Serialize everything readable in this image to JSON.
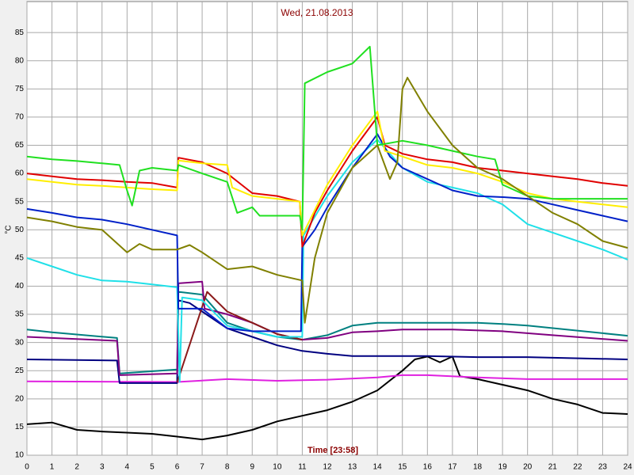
{
  "chart_data": {
    "type": "line",
    "title": "Wed, 21.08.2013",
    "x_label": "Time [23:58]",
    "y_label": "°C",
    "xlim": [
      0,
      24
    ],
    "ylim": [
      10,
      90.5
    ],
    "xticks": [
      0,
      1,
      2,
      3,
      4,
      5,
      6,
      7,
      8,
      9,
      10,
      11,
      12,
      13,
      14,
      15,
      16,
      17,
      18,
      19,
      20,
      21,
      22,
      23,
      24
    ],
    "yticks": [
      10,
      15,
      20,
      25,
      30,
      35,
      40,
      45,
      50,
      55,
      60,
      65,
      70,
      75,
      80,
      85
    ],
    "grid": true,
    "series": [
      {
        "color": "#000000",
        "x": [
          0,
          1,
          2,
          3,
          4,
          5,
          6,
          7,
          8,
          9,
          10,
          11,
          12,
          13,
          14,
          15,
          15.5,
          16,
          16.5,
          17,
          17.3,
          18,
          19,
          20,
          21,
          22,
          23,
          24
        ],
        "values": [
          15.5,
          15.8,
          14.5,
          14.2,
          14,
          13.8,
          13.3,
          12.8,
          13.5,
          14.5,
          16,
          17,
          18,
          19.5,
          21.5,
          25,
          27,
          27.5,
          26.5,
          27.5,
          24,
          23.5,
          22.5,
          21.5,
          20,
          19,
          17.5,
          17.3
        ]
      },
      {
        "color": "#e020e0",
        "x": [
          0,
          6,
          8,
          10,
          12,
          14,
          15,
          16,
          18,
          20,
          24
        ],
        "values": [
          23.1,
          23,
          23.5,
          23.2,
          23.4,
          23.8,
          24.2,
          24.2,
          23.8,
          23.5,
          23.5
        ]
      },
      {
        "color": "#000080",
        "x": [
          0,
          3.6,
          3.7,
          6,
          6.05,
          6.5,
          7,
          8,
          9,
          10,
          11,
          12,
          13,
          14,
          16,
          18,
          20,
          24
        ],
        "values": [
          27,
          26.8,
          22.8,
          22.8,
          37.5,
          37,
          35.5,
          32.5,
          31,
          29.5,
          28.5,
          28,
          27.6,
          27.6,
          27.6,
          27.4,
          27.4,
          27
        ]
      },
      {
        "color": "#008080",
        "x": [
          0,
          1,
          3.6,
          3.7,
          6,
          6.05,
          7,
          8,
          9,
          10,
          11,
          12,
          13,
          14,
          16,
          18,
          19,
          20,
          24
        ],
        "values": [
          32.3,
          31.8,
          30.8,
          24.5,
          25.2,
          39,
          38.5,
          33.5,
          32,
          31,
          30.5,
          31.3,
          33,
          33.5,
          33.5,
          33.5,
          33.3,
          33,
          31.2
        ]
      },
      {
        "color": "#800080",
        "x": [
          0,
          3.6,
          3.7,
          6,
          6.05,
          7,
          7.1,
          8,
          9,
          10,
          11,
          12,
          13,
          14,
          15,
          17,
          19,
          21,
          24
        ],
        "values": [
          31,
          30.3,
          24.2,
          24.5,
          40.5,
          40.8,
          36,
          35,
          33.5,
          31.5,
          30.5,
          30.8,
          31.8,
          32,
          32.3,
          32.3,
          32,
          31.3,
          30.3
        ]
      },
      {
        "color": "#8b1a1a",
        "x": [
          6,
          7.2,
          8,
          9,
          10,
          11
        ],
        "values": [
          22.9,
          39,
          35.5,
          33.5,
          31.5,
          30.5
        ]
      },
      {
        "color": "#20e0e8",
        "x": [
          0,
          1,
          2,
          3,
          4,
          5,
          6,
          6.1,
          6.2,
          7,
          8,
          9,
          10,
          11,
          11.05,
          12,
          13,
          14,
          15,
          16,
          17,
          18,
          19,
          20,
          21,
          22,
          23,
          24
        ],
        "values": [
          45,
          43.5,
          42,
          41,
          40.8,
          40.3,
          39.8,
          23,
          38,
          37.5,
          33,
          32,
          31,
          31,
          49,
          56,
          62,
          66,
          61,
          58.5,
          57.5,
          56.5,
          54.5,
          51,
          49.5,
          48,
          46.5,
          44.7
        ]
      },
      {
        "color": "#0020c8",
        "x": [
          0,
          1,
          2,
          3,
          4,
          5,
          6,
          6.05,
          7,
          8,
          9,
          10,
          10.95,
          11,
          11.5,
          12,
          13,
          14,
          14.5,
          15,
          16,
          17,
          18,
          19,
          20,
          21,
          22,
          23,
          24
        ],
        "values": [
          53.7,
          53,
          52.2,
          51.8,
          51,
          50,
          49,
          36,
          36,
          32.5,
          32,
          32,
          32,
          47,
          50,
          54,
          61,
          67,
          63,
          61,
          59,
          57,
          56,
          55.8,
          55.5,
          54.5,
          53.5,
          52.5,
          51.5
        ]
      },
      {
        "color": "#e00000",
        "x": [
          0,
          1,
          2,
          3,
          4,
          5,
          6,
          6.05,
          7,
          8,
          9,
          10,
          10.9,
          11,
          11.5,
          12,
          13,
          14,
          14.3,
          15,
          16,
          17,
          18,
          19,
          20,
          21,
          22,
          23,
          24
        ],
        "values": [
          60,
          59.5,
          59,
          58.8,
          58.5,
          58.3,
          57.5,
          62.8,
          62,
          60,
          56.5,
          56,
          55,
          47,
          53,
          57,
          64,
          70,
          65,
          63.5,
          62.5,
          62,
          61,
          60.5,
          60,
          59.5,
          59,
          58.3,
          57.8
        ]
      },
      {
        "color": "#ffee00",
        "x": [
          0,
          1,
          2,
          3,
          4,
          5,
          6,
          6.05,
          7,
          8,
          8.2,
          9,
          10,
          10.9,
          11,
          12,
          13,
          14,
          14.3,
          15,
          16,
          17,
          18,
          19,
          20,
          21,
          22,
          23,
          24
        ],
        "values": [
          59,
          58.5,
          58,
          57.8,
          57.5,
          57.2,
          57,
          62.3,
          61.8,
          61.5,
          57.5,
          56,
          55.5,
          55,
          49,
          58,
          65,
          71,
          64,
          63,
          61.5,
          61,
          60,
          58.5,
          56.5,
          55.5,
          55,
          54.5,
          54
        ]
      },
      {
        "color": "#20e020",
        "x": [
          0,
          1,
          2,
          3,
          3.7,
          4,
          4.2,
          4.5,
          5,
          6,
          6.05,
          7,
          8,
          8.4,
          9,
          9.3,
          10,
          10.9,
          11,
          11.1,
          12,
          13,
          13.7,
          14,
          15,
          16,
          17,
          18,
          18.7,
          19,
          20,
          21,
          24
        ],
        "values": [
          63,
          62.5,
          62.2,
          61.8,
          61.5,
          57,
          54.3,
          60.5,
          61,
          60.5,
          61.5,
          60,
          58.5,
          53,
          54,
          52.5,
          52.5,
          52.5,
          50,
          76,
          78,
          79.5,
          82.5,
          65,
          65.8,
          65,
          64,
          63,
          62.5,
          58,
          56,
          55.5,
          55.5
        ]
      },
      {
        "color": "#808000",
        "x": [
          0,
          1,
          2,
          3,
          4,
          4.5,
          5,
          6,
          6.5,
          7,
          8,
          9,
          10,
          11,
          11.1,
          11.5,
          12,
          13,
          14,
          14.5,
          14.8,
          15,
          15.2,
          16,
          17,
          18,
          19,
          20,
          21,
          22,
          23,
          24
        ],
        "values": [
          52.2,
          51.5,
          50.5,
          50,
          46,
          47.5,
          46.5,
          46.5,
          47.3,
          46,
          43,
          43.5,
          42,
          41,
          33.5,
          45,
          53,
          61,
          65,
          59,
          62,
          75,
          77,
          71,
          65,
          61,
          59,
          56,
          53,
          51,
          48,
          46.8
        ]
      }
    ]
  }
}
